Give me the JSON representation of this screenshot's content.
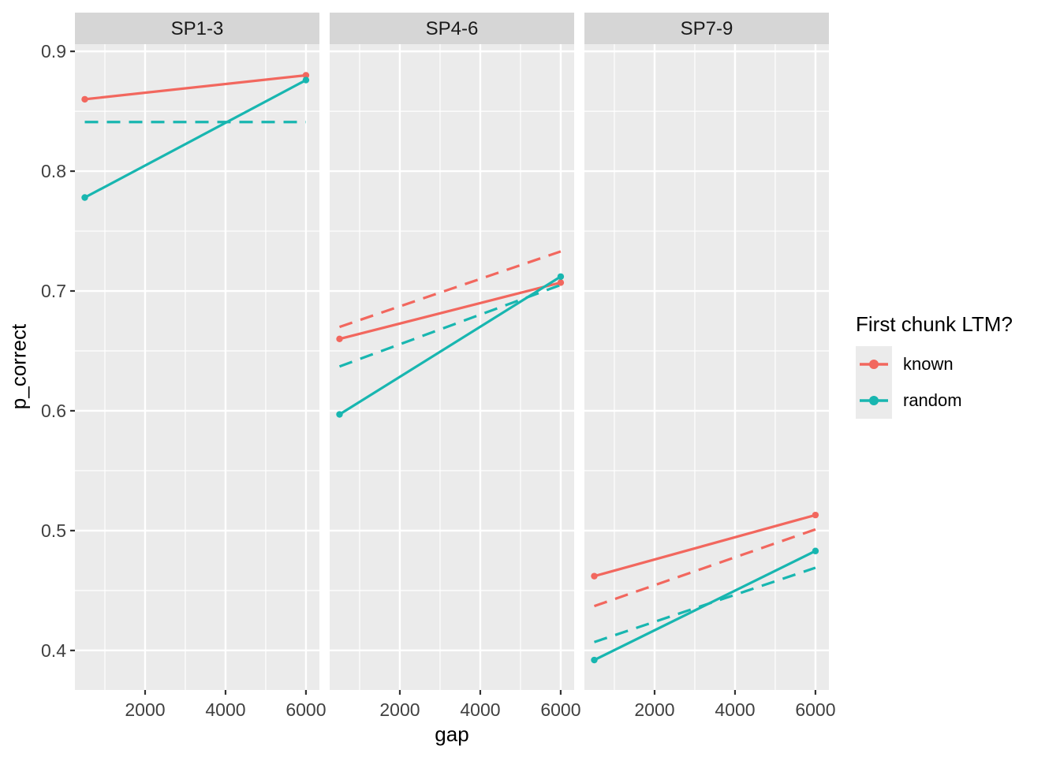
{
  "axes": {
    "x": {
      "title": "gap"
    },
    "y": {
      "title": "p_correct"
    }
  },
  "legend": {
    "title": "First chunk LTM?",
    "entries": [
      {
        "label": "known",
        "color": "#F2675E"
      },
      {
        "label": "random",
        "color": "#18B6B0"
      }
    ]
  },
  "colors": {
    "known": "#F2675E",
    "random": "#18B6B0",
    "panel_bg": "#EBEBEB",
    "strip_bg": "#D6D6D6",
    "grid": "#FFFFFF",
    "tick_mark": "#333333",
    "tick_text": "#404040",
    "strip_text": "#1A1A1A"
  },
  "chart_data": {
    "type": "line",
    "title": "",
    "xlabel": "gap",
    "ylabel": "p_correct",
    "legend_title": "First chunk LTM?",
    "legend_position": "right",
    "grid": "on",
    "x": {
      "ticks": [
        2000,
        4000,
        6000
      ],
      "minor_ticks": [
        1000,
        3000,
        5000
      ],
      "range": [
        255,
        6335
      ]
    },
    "y": {
      "ticks": [
        0.9,
        0.8,
        0.7,
        0.6,
        0.5,
        0.4
      ],
      "minor_ticks": [
        0.85,
        0.75,
        0.65,
        0.55,
        0.45
      ],
      "range": [
        0.367,
        0.906
      ]
    },
    "facets": [
      {
        "label": "SP1-3",
        "series": [
          {
            "name": "random",
            "style": "dashed",
            "points": false,
            "data": [
              [
                500,
                0.841
              ],
              [
                6000,
                0.841
              ]
            ]
          },
          {
            "name": "known",
            "style": "solid",
            "points": true,
            "data": [
              [
                500,
                0.86
              ],
              [
                6000,
                0.88
              ]
            ]
          },
          {
            "name": "random",
            "style": "solid",
            "points": true,
            "data": [
              [
                500,
                0.778
              ],
              [
                6000,
                0.876
              ]
            ]
          }
        ]
      },
      {
        "label": "SP4-6",
        "series": [
          {
            "name": "known",
            "style": "dashed",
            "points": false,
            "data": [
              [
                500,
                0.67
              ],
              [
                6000,
                0.733
              ]
            ]
          },
          {
            "name": "random",
            "style": "dashed",
            "points": false,
            "data": [
              [
                500,
                0.637
              ],
              [
                6000,
                0.705
              ]
            ]
          },
          {
            "name": "known",
            "style": "solid",
            "points": true,
            "data": [
              [
                500,
                0.66
              ],
              [
                6000,
                0.707
              ]
            ]
          },
          {
            "name": "random",
            "style": "solid",
            "points": true,
            "data": [
              [
                500,
                0.597
              ],
              [
                6000,
                0.712
              ]
            ]
          }
        ]
      },
      {
        "label": "SP7-9",
        "series": [
          {
            "name": "known",
            "style": "dashed",
            "points": false,
            "data": [
              [
                500,
                0.437
              ],
              [
                6000,
                0.501
              ]
            ]
          },
          {
            "name": "random",
            "style": "dashed",
            "points": false,
            "data": [
              [
                500,
                0.407
              ],
              [
                6000,
                0.469
              ]
            ]
          },
          {
            "name": "known",
            "style": "solid",
            "points": true,
            "data": [
              [
                500,
                0.462
              ],
              [
                6000,
                0.513
              ]
            ]
          },
          {
            "name": "random",
            "style": "solid",
            "points": true,
            "data": [
              [
                500,
                0.392
              ],
              [
                6000,
                0.483
              ]
            ]
          }
        ]
      }
    ]
  }
}
